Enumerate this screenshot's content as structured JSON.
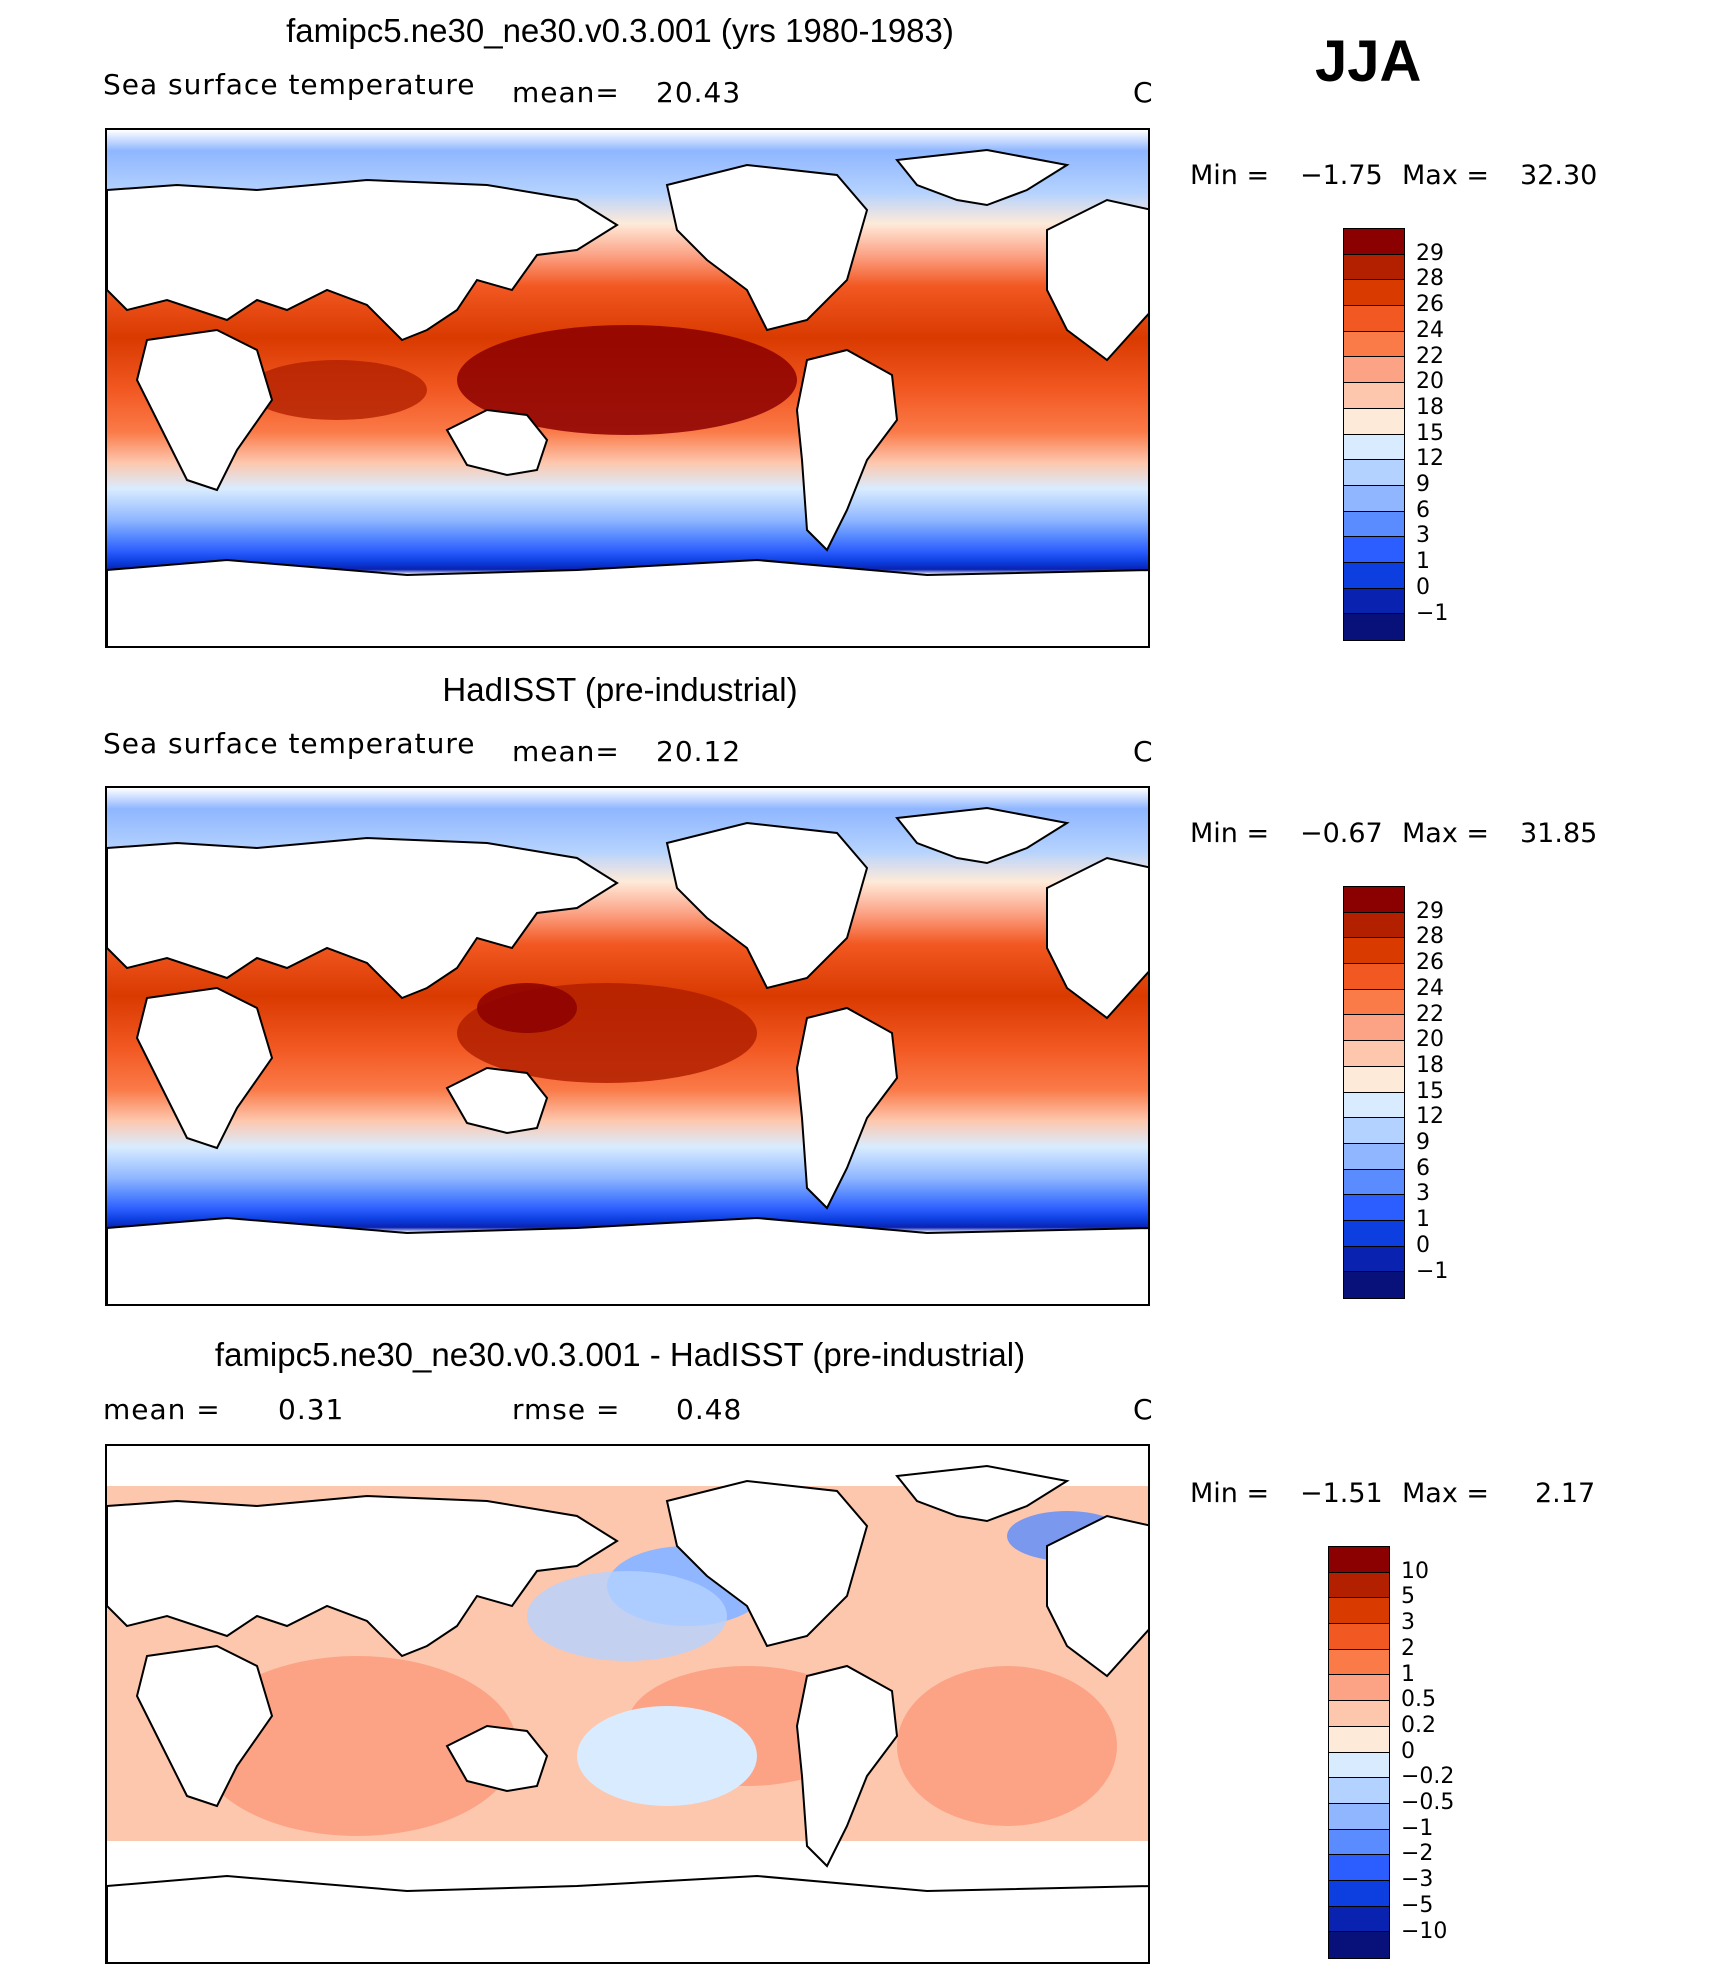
{
  "season": "JJA",
  "panels": [
    {
      "title": "famipc5.ne30_ne30.v0.3.001 (yrs 1980-1983)",
      "left_label": "Sea surface temperature",
      "mid_label": "mean=",
      "mid_value": "20.43",
      "units": "C",
      "min_label": "Min =",
      "min_value": "−1.75",
      "max_label": "Max =",
      "max_value": "32.30",
      "levels": [
        "29",
        "28",
        "26",
        "24",
        "22",
        "20",
        "18",
        "15",
        "12",
        "9",
        "6",
        "3",
        "1",
        "0",
        "−1"
      ]
    },
    {
      "title": "HadISST (pre-industrial)",
      "left_label": "Sea surface temperature",
      "mid_label": "mean=",
      "mid_value": "20.12",
      "units": "C",
      "min_label": "Min =",
      "min_value": "−0.67",
      "max_label": "Max =",
      "max_value": "31.85",
      "levels": [
        "29",
        "28",
        "26",
        "24",
        "22",
        "20",
        "18",
        "15",
        "12",
        "9",
        "6",
        "3",
        "1",
        "0",
        "−1"
      ]
    },
    {
      "title": "famipc5.ne30_ne30.v0.3.001 - HadISST (pre-industrial)",
      "left_label": "mean =",
      "left_value": "0.31",
      "mid_label": "rmse =",
      "mid_value": "0.48",
      "units": "C",
      "min_label": "Min =",
      "min_value": "−1.51",
      "max_label": "Max =",
      "max_value": "2.17",
      "levels": [
        "10",
        "5",
        "3",
        "2",
        "1",
        "0.5",
        "0.2",
        "0",
        "−0.2",
        "−0.5",
        "−1",
        "−2",
        "−3",
        "−5",
        "−10"
      ]
    }
  ],
  "colors": {
    "abs_scale": [
      "#8b0000",
      "#b22000",
      "#d93a00",
      "#f25822",
      "#fa7a48",
      "#fca386",
      "#fdc7ae",
      "#feead9",
      "#d9ecff",
      "#b4d2ff",
      "#8fb6ff",
      "#5a8cff",
      "#2c5dff",
      "#0d3ee0",
      "#0a22b0",
      "#08117a"
    ],
    "diff_scale": [
      "#8b0000",
      "#b22000",
      "#d93a00",
      "#f25822",
      "#fa7a48",
      "#fca386",
      "#fdc7ae",
      "#feead9",
      "#d9ecff",
      "#b4d2ff",
      "#8fb6ff",
      "#5a8cff",
      "#2c5dff",
      "#0d3ee0",
      "#0a22b0",
      "#08117a"
    ]
  }
}
